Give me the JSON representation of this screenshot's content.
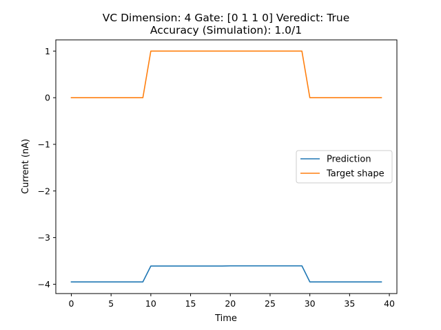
{
  "chart_data": {
    "type": "line",
    "title": "VC Dimension: 4 Gate: [0 1 1 0] Veredict: True\nAccuracy (Simulation): 1.0/1",
    "xlabel": "Time",
    "ylabel": "Current (nA)",
    "xlim": [
      -1.95,
      40.95
    ],
    "ylim": [
      -4.2,
      1.24
    ],
    "xticks": [
      0,
      5,
      10,
      15,
      20,
      25,
      30,
      35,
      40
    ],
    "yticks": [
      -4,
      -3,
      -2,
      -1,
      0,
      1
    ],
    "grid": false,
    "legend_placement": "center-right",
    "x": [
      0,
      1,
      2,
      3,
      4,
      5,
      6,
      7,
      8,
      9,
      10,
      11,
      12,
      13,
      14,
      15,
      16,
      17,
      18,
      19,
      20,
      21,
      22,
      23,
      24,
      25,
      26,
      27,
      28,
      29,
      30,
      31,
      32,
      33,
      34,
      35,
      36,
      37,
      38,
      39
    ],
    "series": [
      {
        "name": "Prediction",
        "color": "#1f77b4",
        "values": [
          -3.95,
          -3.95,
          -3.95,
          -3.95,
          -3.95,
          -3.95,
          -3.95,
          -3.95,
          -3.95,
          -3.95,
          -3.61,
          -3.61,
          -3.61,
          -3.61,
          -3.61,
          -3.61,
          -3.61,
          -3.61,
          -3.61,
          -3.61,
          -3.605,
          -3.605,
          -3.605,
          -3.605,
          -3.605,
          -3.605,
          -3.605,
          -3.605,
          -3.605,
          -3.605,
          -3.95,
          -3.95,
          -3.95,
          -3.95,
          -3.95,
          -3.95,
          -3.95,
          -3.95,
          -3.95,
          -3.95
        ]
      },
      {
        "name": "Target shape",
        "color": "#ff7f0e",
        "values": [
          0,
          0,
          0,
          0,
          0,
          0,
          0,
          0,
          0,
          0,
          1,
          1,
          1,
          1,
          1,
          1,
          1,
          1,
          1,
          1,
          1,
          1,
          1,
          1,
          1,
          1,
          1,
          1,
          1,
          1,
          0,
          0,
          0,
          0,
          0,
          0,
          0,
          0,
          0,
          0
        ]
      }
    ]
  }
}
